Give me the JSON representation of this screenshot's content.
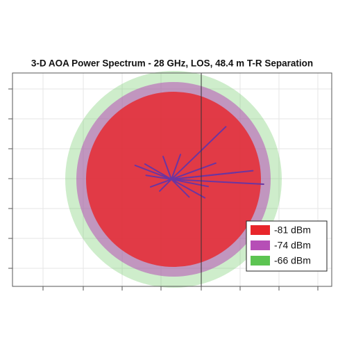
{
  "chart_data": {
    "type": "polar",
    "title": "3-D AOA Power Spectrum - 28 GHz, LOS, 48.4 m T-R Separation",
    "rlim": [
      -144,
      -66
    ],
    "series": [
      {
        "name": "-66 dBm",
        "color": "#5cc452",
        "values": [
          -66
        ]
      },
      {
        "name": "-74 dBm",
        "color": "#b64fb6",
        "values": [
          -74
        ]
      },
      {
        "name": "-81 dBm",
        "color": "#e8262b",
        "values": [
          -81
        ]
      }
    ],
    "rays": {
      "color": "#6a35a2",
      "angles": [
        44,
        -3,
        6,
        6,
        -29,
        159,
        110,
        171,
        -11,
        70,
        225,
        150,
        20,
        -45,
        200
      ],
      "values": [
        -89.5,
        -77.5,
        -85,
        -97.5,
        -116.5,
        -116,
        -126.5,
        -125.5,
        -117,
        -125,
        -132,
        -122,
        -110,
        -126,
        -128
      ]
    }
  }
}
